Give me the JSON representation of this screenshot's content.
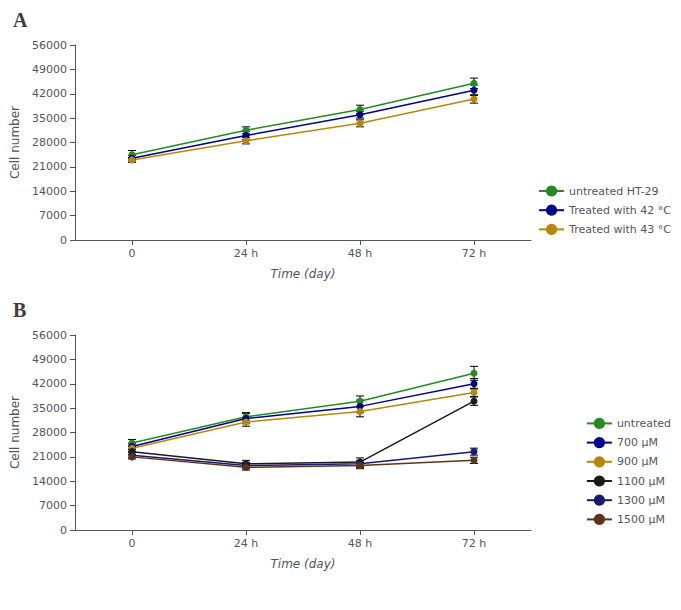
{
  "chart_data": [
    {
      "type": "line",
      "title": "A",
      "categories": [
        "0",
        "24 h",
        "48 h",
        "72 h"
      ],
      "x_label": "Time (day)",
      "y_label": "Cell number",
      "series": [
        {
          "name": "untreated HT-29",
          "color": "#228B22",
          "marker": "circle",
          "values": [
            24500,
            31500,
            37500,
            45000
          ],
          "yerr": [
            1200,
            1000,
            1200,
            1500
          ]
        },
        {
          "name": "Treated with 42 °C",
          "color": "#00008B",
          "marker": "circle",
          "values": [
            23500,
            30000,
            36000,
            43000
          ],
          "yerr": [
            800,
            1200,
            1000,
            1500
          ]
        },
        {
          "name": "Treated with 43 °C",
          "color": "#B8860B",
          "marker": "circle",
          "values": [
            23000,
            28500,
            33500,
            40500
          ],
          "yerr": [
            700,
            900,
            1000,
            1200
          ]
        }
      ],
      "ylim": [
        0,
        56000
      ],
      "yticks": [
        0,
        7000,
        14000,
        21000,
        28000,
        35000,
        42000,
        49000,
        56000
      ],
      "grid": false,
      "legend": "lower right"
    },
    {
      "type": "line",
      "title": "B",
      "categories": [
        "0",
        "24 h",
        "48 h",
        "72 h"
      ],
      "x_label": "Time (day)",
      "y_label": "Cell number",
      "series": [
        {
          "name": "untreated",
          "color": "#228B22",
          "marker": "circle",
          "values": [
            25000,
            32500,
            37000,
            45000
          ],
          "yerr": [
            1000,
            1200,
            1500,
            2000
          ]
        },
        {
          "name": "700 μM",
          "color": "#00008B",
          "marker": "circle",
          "values": [
            24000,
            32000,
            35500,
            42000
          ],
          "yerr": [
            900,
            1500,
            1800,
            1500
          ]
        },
        {
          "name": "900 μM",
          "color": "#B8860B",
          "marker": "circle",
          "values": [
            23500,
            31000,
            34000,
            39500
          ],
          "yerr": [
            900,
            1200,
            1500,
            1200
          ]
        },
        {
          "name": "1100 μM",
          "color": "#1a1a1a",
          "marker": "circle",
          "values": [
            22500,
            19000,
            19500,
            37000
          ],
          "yerr": [
            800,
            1000,
            1200,
            1200
          ]
        },
        {
          "name": "1300 μM",
          "color": "#191970",
          "marker": "circle",
          "values": [
            21500,
            18500,
            19000,
            22500
          ],
          "yerr": [
            700,
            900,
            1000,
            1000
          ]
        },
        {
          "name": "1500 μM",
          "color": "#5C3317",
          "marker": "circle",
          "values": [
            21000,
            18000,
            18500,
            20000
          ],
          "yerr": [
            600,
            800,
            900,
            900
          ]
        }
      ],
      "ylim": [
        0,
        56000
      ],
      "yticks": [
        0,
        7000,
        14000,
        21000,
        28000,
        35000,
        42000,
        49000,
        56000
      ],
      "grid": false,
      "legend": "lower right"
    }
  ]
}
